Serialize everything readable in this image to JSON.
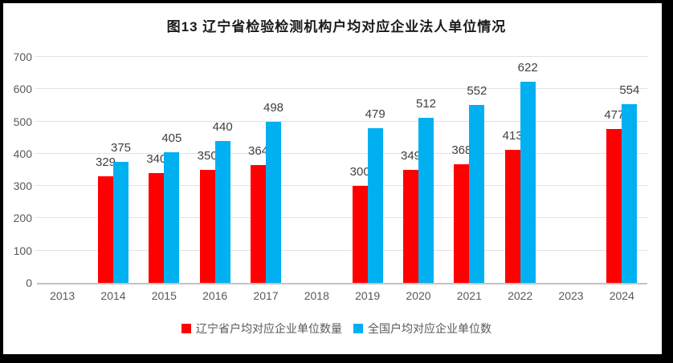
{
  "chart_data": {
    "type": "bar",
    "title": "图13 辽宁省检验检测机构户均对应企业法人单位情况",
    "categories": [
      "2013",
      "2014",
      "2015",
      "2016",
      "2017",
      "2018",
      "2019",
      "2020",
      "2021",
      "2022",
      "2023",
      "2024"
    ],
    "series": [
      {
        "name": "辽宁省户均对应企业单位数量",
        "color": "#ff0000",
        "values": [
          null,
          329,
          340,
          350,
          364,
          null,
          300,
          349,
          368,
          413,
          null,
          477
        ]
      },
      {
        "name": "全国户均对应企业单位数",
        "color": "#00b0f0",
        "values": [
          null,
          375,
          405,
          440,
          498,
          null,
          479,
          512,
          552,
          622,
          null,
          554
        ]
      }
    ],
    "ylim": [
      0,
      700
    ],
    "ytick_step": 100,
    "grid": true,
    "legend_position": "bottom",
    "background_color": "#ffffff",
    "frame_color": "#000000",
    "axis_label_color": "#595959",
    "data_label_color": "#404040"
  }
}
